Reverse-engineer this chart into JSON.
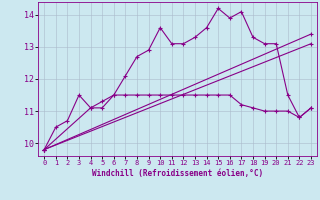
{
  "xlabel": "Windchill (Refroidissement éolien,°C)",
  "bg_color": "#cce8f0",
  "line_color": "#880088",
  "grid_color": "#aabbcc",
  "xlim": [
    -0.5,
    23.5
  ],
  "ylim": [
    9.6,
    14.4
  ],
  "yticks": [
    10,
    11,
    12,
    13,
    14
  ],
  "xticks": [
    0,
    1,
    2,
    3,
    4,
    5,
    6,
    7,
    8,
    9,
    10,
    11,
    12,
    13,
    14,
    15,
    16,
    17,
    18,
    19,
    20,
    21,
    22,
    23
  ],
  "series_main": {
    "x": [
      0,
      1,
      2,
      3,
      4,
      5,
      6,
      7,
      8,
      9,
      10,
      11,
      12,
      13,
      14,
      15,
      16,
      17,
      18,
      19,
      20,
      21,
      22,
      23
    ],
    "y": [
      9.8,
      10.5,
      10.7,
      11.5,
      11.1,
      11.1,
      11.5,
      12.1,
      12.7,
      12.9,
      13.6,
      13.1,
      13.1,
      13.3,
      13.6,
      14.2,
      13.9,
      14.1,
      13.3,
      13.1,
      13.1,
      11.5,
      10.8,
      11.1
    ]
  },
  "series_flat": {
    "x": [
      0,
      4,
      5,
      6,
      7,
      8,
      9,
      10,
      11,
      12,
      13,
      14,
      15,
      16,
      17,
      18,
      19,
      20,
      21,
      22,
      23
    ],
    "y": [
      9.8,
      11.1,
      11.3,
      11.5,
      11.5,
      11.5,
      11.5,
      11.5,
      11.5,
      11.5,
      11.5,
      11.5,
      11.5,
      11.5,
      11.2,
      11.1,
      11.0,
      11.0,
      11.0,
      10.8,
      11.1
    ]
  },
  "series_trend1": {
    "x": [
      0,
      23
    ],
    "y": [
      9.8,
      13.4
    ]
  },
  "series_trend2": {
    "x": [
      0,
      23
    ],
    "y": [
      9.8,
      13.1
    ]
  }
}
